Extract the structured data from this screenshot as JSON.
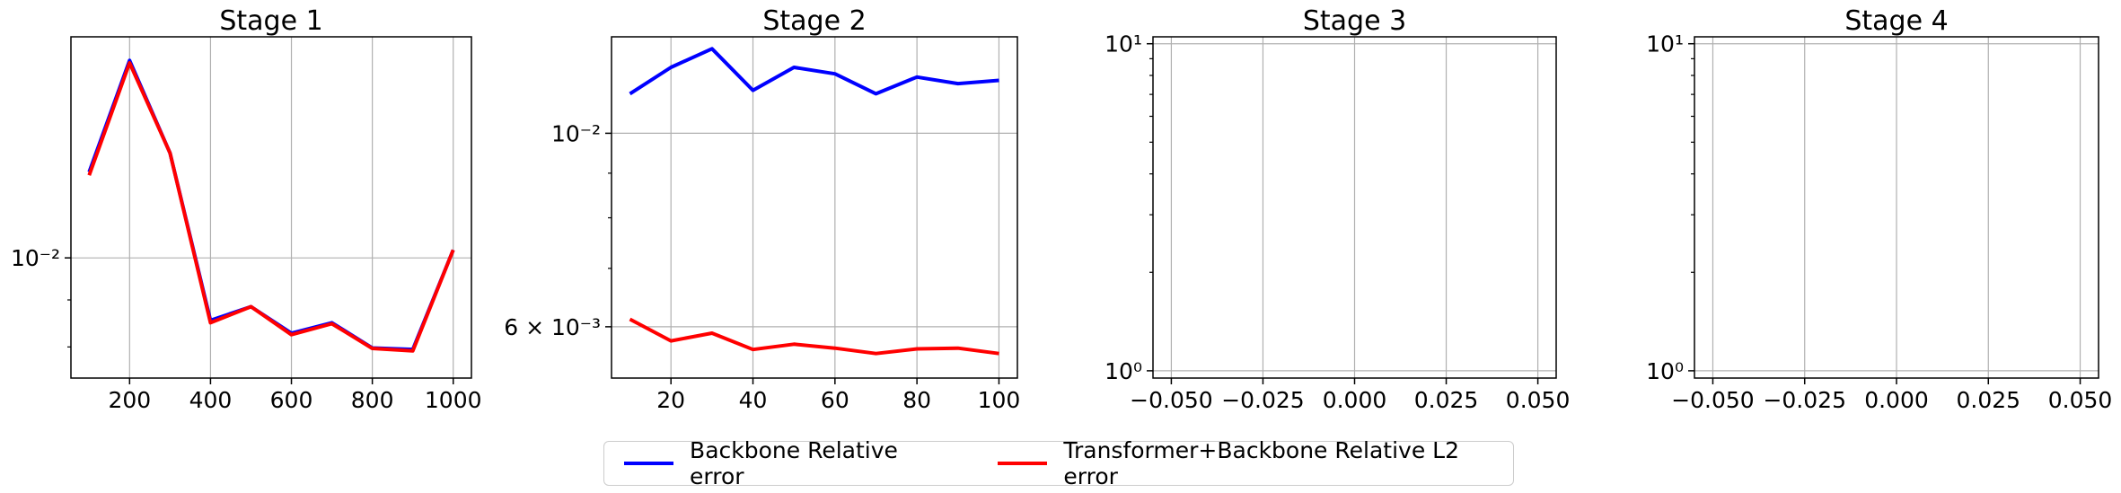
{
  "chart_data": [
    {
      "type": "line",
      "title": "Stage 1",
      "yscale": "log",
      "grid": true,
      "x": [
        100,
        200,
        300,
        400,
        500,
        600,
        700,
        800,
        900,
        1000
      ],
      "xticks": [
        200,
        400,
        600,
        800,
        1000
      ],
      "xtick_labels": [
        "200",
        "400",
        "600",
        "800",
        "1000"
      ],
      "yticks": [
        0.01
      ],
      "ytick_labels": [
        "10⁻²"
      ],
      "xlim": [
        55,
        1045
      ],
      "ylim": [
        0.0074,
        0.0174
      ],
      "series": [
        {
          "name": "Backbone Relative error",
          "color": "#0000ff",
          "values": [
            0.0124,
            0.0164,
            0.013,
            0.00855,
            0.00885,
            0.00828,
            0.0085,
            0.00798,
            0.00795,
            0.0102
          ]
        },
        {
          "name": "Transformer+Backbone Relative L2 error",
          "color": "#ff0000",
          "values": [
            0.0123,
            0.0163,
            0.013,
            0.0085,
            0.00885,
            0.00825,
            0.00848,
            0.00797,
            0.00792,
            0.0102
          ]
        }
      ]
    },
    {
      "type": "line",
      "title": "Stage 2",
      "yscale": "log",
      "grid": true,
      "x": [
        10,
        20,
        30,
        40,
        50,
        60,
        70,
        80,
        90,
        100
      ],
      "xticks": [
        20,
        40,
        60,
        80,
        100
      ],
      "xtick_labels": [
        "20",
        "40",
        "60",
        "80",
        "100"
      ],
      "yticks": [
        0.01,
        0.006
      ],
      "ytick_labels": [
        "10⁻²",
        "6 × 10⁻³"
      ],
      "xlim": [
        5.5,
        104.5
      ],
      "ylim": [
        0.00524,
        0.0129
      ],
      "series": [
        {
          "name": "Backbone Relative error",
          "color": "#0000ff",
          "values": [
            0.0111,
            0.0119,
            0.0125,
            0.0112,
            0.0119,
            0.0117,
            0.0111,
            0.0116,
            0.0114,
            0.0115
          ]
        },
        {
          "name": "Transformer+Backbone Relative L2 error",
          "color": "#ff0000",
          "values": [
            0.00612,
            0.00578,
            0.0059,
            0.00565,
            0.00573,
            0.00567,
            0.00559,
            0.00566,
            0.00567,
            0.00559
          ]
        }
      ]
    },
    {
      "type": "line",
      "title": "Stage 3",
      "yscale": "log",
      "grid": true,
      "x": [],
      "xticks": [
        -0.05,
        -0.025,
        0.0,
        0.025,
        0.05
      ],
      "xtick_labels": [
        "−0.050",
        "−0.025",
        "0.000",
        "0.025",
        "0.050"
      ],
      "yticks": [
        10,
        1
      ],
      "ytick_labels": [
        "10¹",
        "10⁰"
      ],
      "xlim": [
        -0.055,
        0.055
      ],
      "ylim": [
        0.95,
        10.5
      ],
      "series": []
    },
    {
      "type": "line",
      "title": "Stage 4",
      "yscale": "log",
      "grid": true,
      "x": [],
      "xticks": [
        -0.05,
        -0.025,
        0.0,
        0.025,
        0.05
      ],
      "xtick_labels": [
        "−0.050",
        "−0.025",
        "0.000",
        "0.025",
        "0.050"
      ],
      "yticks": [
        10,
        1
      ],
      "ytick_labels": [
        "10¹",
        "10⁰"
      ],
      "xlim": [
        -0.055,
        0.055
      ],
      "ylim": [
        0.95,
        10.5
      ],
      "series": []
    }
  ],
  "legend": {
    "placement": "bottom-center",
    "items": [
      {
        "label": "Backbone Relative error",
        "color": "#0000ff"
      },
      {
        "label": "Transformer+Backbone Relative L2 error",
        "color": "#ff0000"
      }
    ]
  }
}
